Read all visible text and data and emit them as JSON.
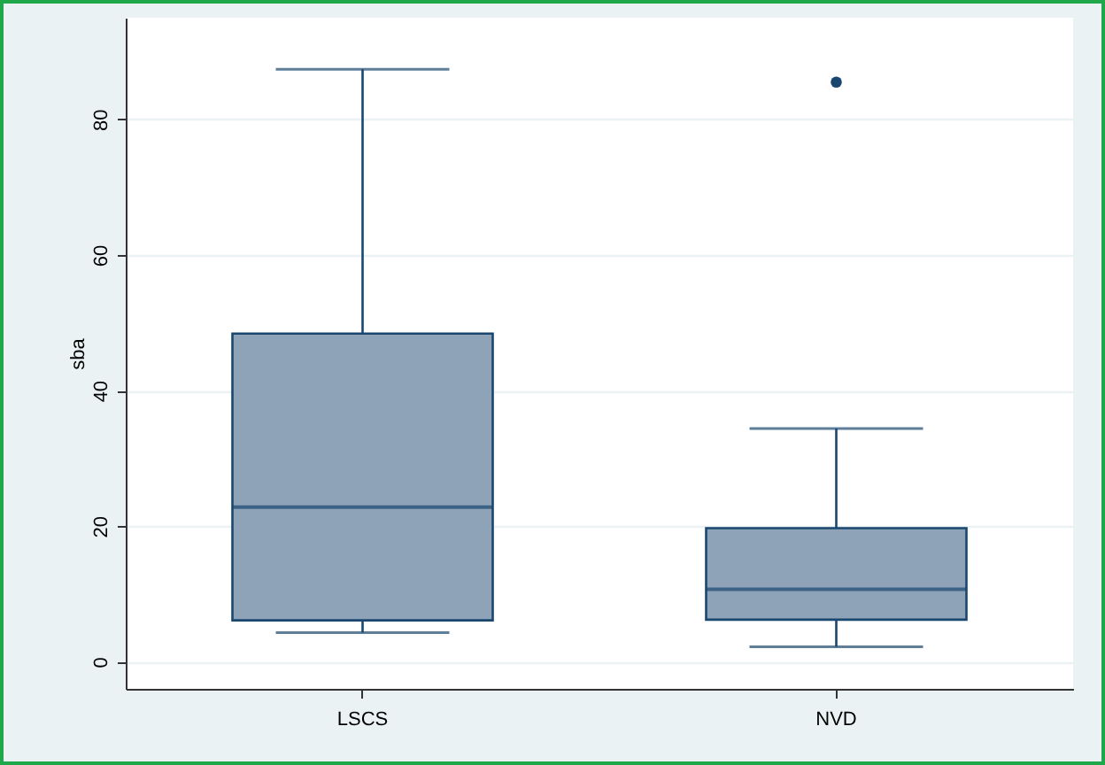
{
  "chart_data": {
    "type": "box",
    "categories": [
      "LSCS",
      "NVD"
    ],
    "ylabel": "sba",
    "ylim": [
      -4,
      95
    ],
    "yticks": [
      0,
      20,
      40,
      60,
      80
    ],
    "grid": "y",
    "color": "#8ea3b8",
    "boxes": [
      {
        "low": 4.3,
        "q1": 6.1,
        "median": 22.8,
        "q3": 48.4,
        "high": 87.4
      },
      {
        "low": 2.2,
        "q1": 6.2,
        "median": 10.7,
        "q3": 19.7,
        "high": 34.4,
        "outliers": [
          85.5
        ]
      }
    ]
  }
}
